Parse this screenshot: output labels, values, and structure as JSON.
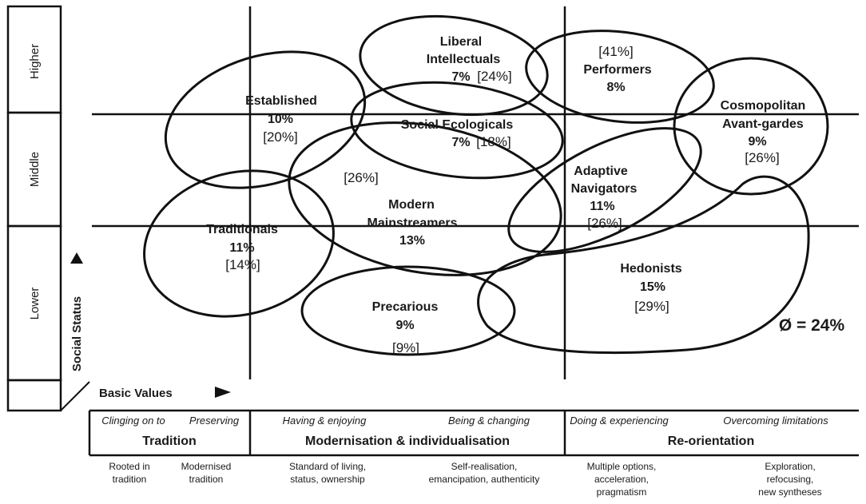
{
  "axes": {
    "y_label": "Social Status",
    "x_label": "Basic Values",
    "status_levels": [
      "Higher",
      "Middle",
      "Lower"
    ]
  },
  "milieus": [
    {
      "id": "established",
      "name_lines": [
        "Established"
      ],
      "share": "10%",
      "bracket": "[20%]",
      "bracket_color": "#c00000"
    },
    {
      "id": "liberal-intellectuals",
      "name_lines": [
        "Liberal",
        "Intellectuals"
      ],
      "share": "7%",
      "bracket": "[24%]",
      "bracket_color": "#2e6da4"
    },
    {
      "id": "performers",
      "name_lines": [
        "Performers"
      ],
      "share": "8%",
      "bracket": "[41%]",
      "bracket_color": "#4a7a2a"
    },
    {
      "id": "cosmopolitan-avant-gardes",
      "name_lines": [
        "Cosmopolitan",
        "Avant-gardes"
      ],
      "share": "9%",
      "bracket": "[26%]",
      "bracket_color": "#4a7a2a"
    },
    {
      "id": "social-ecologicals",
      "name_lines": [
        "Social Ecologicals"
      ],
      "share": "7%",
      "bracket": "[18%]",
      "bracket_color": "#c00000"
    },
    {
      "id": "traditionals",
      "name_lines": [
        "Traditionals"
      ],
      "share": "11%",
      "bracket": "[14%]",
      "bracket_color": "#c00000"
    },
    {
      "id": "modern-mainstreamers",
      "name_lines": [
        "Modern",
        "Mainstreamers"
      ],
      "share": "13%",
      "bracket": "[26%]",
      "bracket_color": "#4a7a2a"
    },
    {
      "id": "adaptive-navigators",
      "name_lines": [
        "Adaptive",
        "Navigators"
      ],
      "share": "11%",
      "bracket": "[26%]",
      "bracket_color": "#4a7a2a"
    },
    {
      "id": "precarious",
      "name_lines": [
        "Precarious"
      ],
      "share": "9%",
      "bracket": "[9%]",
      "bracket_color": "#c00000"
    },
    {
      "id": "hedonists",
      "name_lines": [
        "Hedonists"
      ],
      "share": "15%",
      "bracket": "[29%]",
      "bracket_color": "#4a7a2a"
    }
  ],
  "average": {
    "text": "Ø = 24%",
    "color": "#2e6da4"
  },
  "value_groups": [
    {
      "title": "Tradition",
      "sub_left": "Clinging on to",
      "sub_right": "Preserving",
      "notes": [
        [
          "Rooted in",
          "tradition"
        ],
        [
          "Modernised",
          "tradition"
        ]
      ]
    },
    {
      "title": "Modernisation & individualisation",
      "sub_left": "Having & enjoying",
      "sub_right": "Being & changing",
      "notes": [
        [
          "Standard of living,",
          "status, ownership"
        ],
        [
          "Self-realisation,",
          "emancipation, authenticity"
        ]
      ]
    },
    {
      "title": "Re-orientation",
      "sub_left": "Doing & experiencing",
      "sub_right": "Overcoming limitations",
      "notes": [
        [
          "Multiple options,",
          "acceleration,",
          "pragmatism"
        ],
        [
          "Exploration,",
          "refocusing,",
          "new syntheses"
        ]
      ]
    }
  ]
}
